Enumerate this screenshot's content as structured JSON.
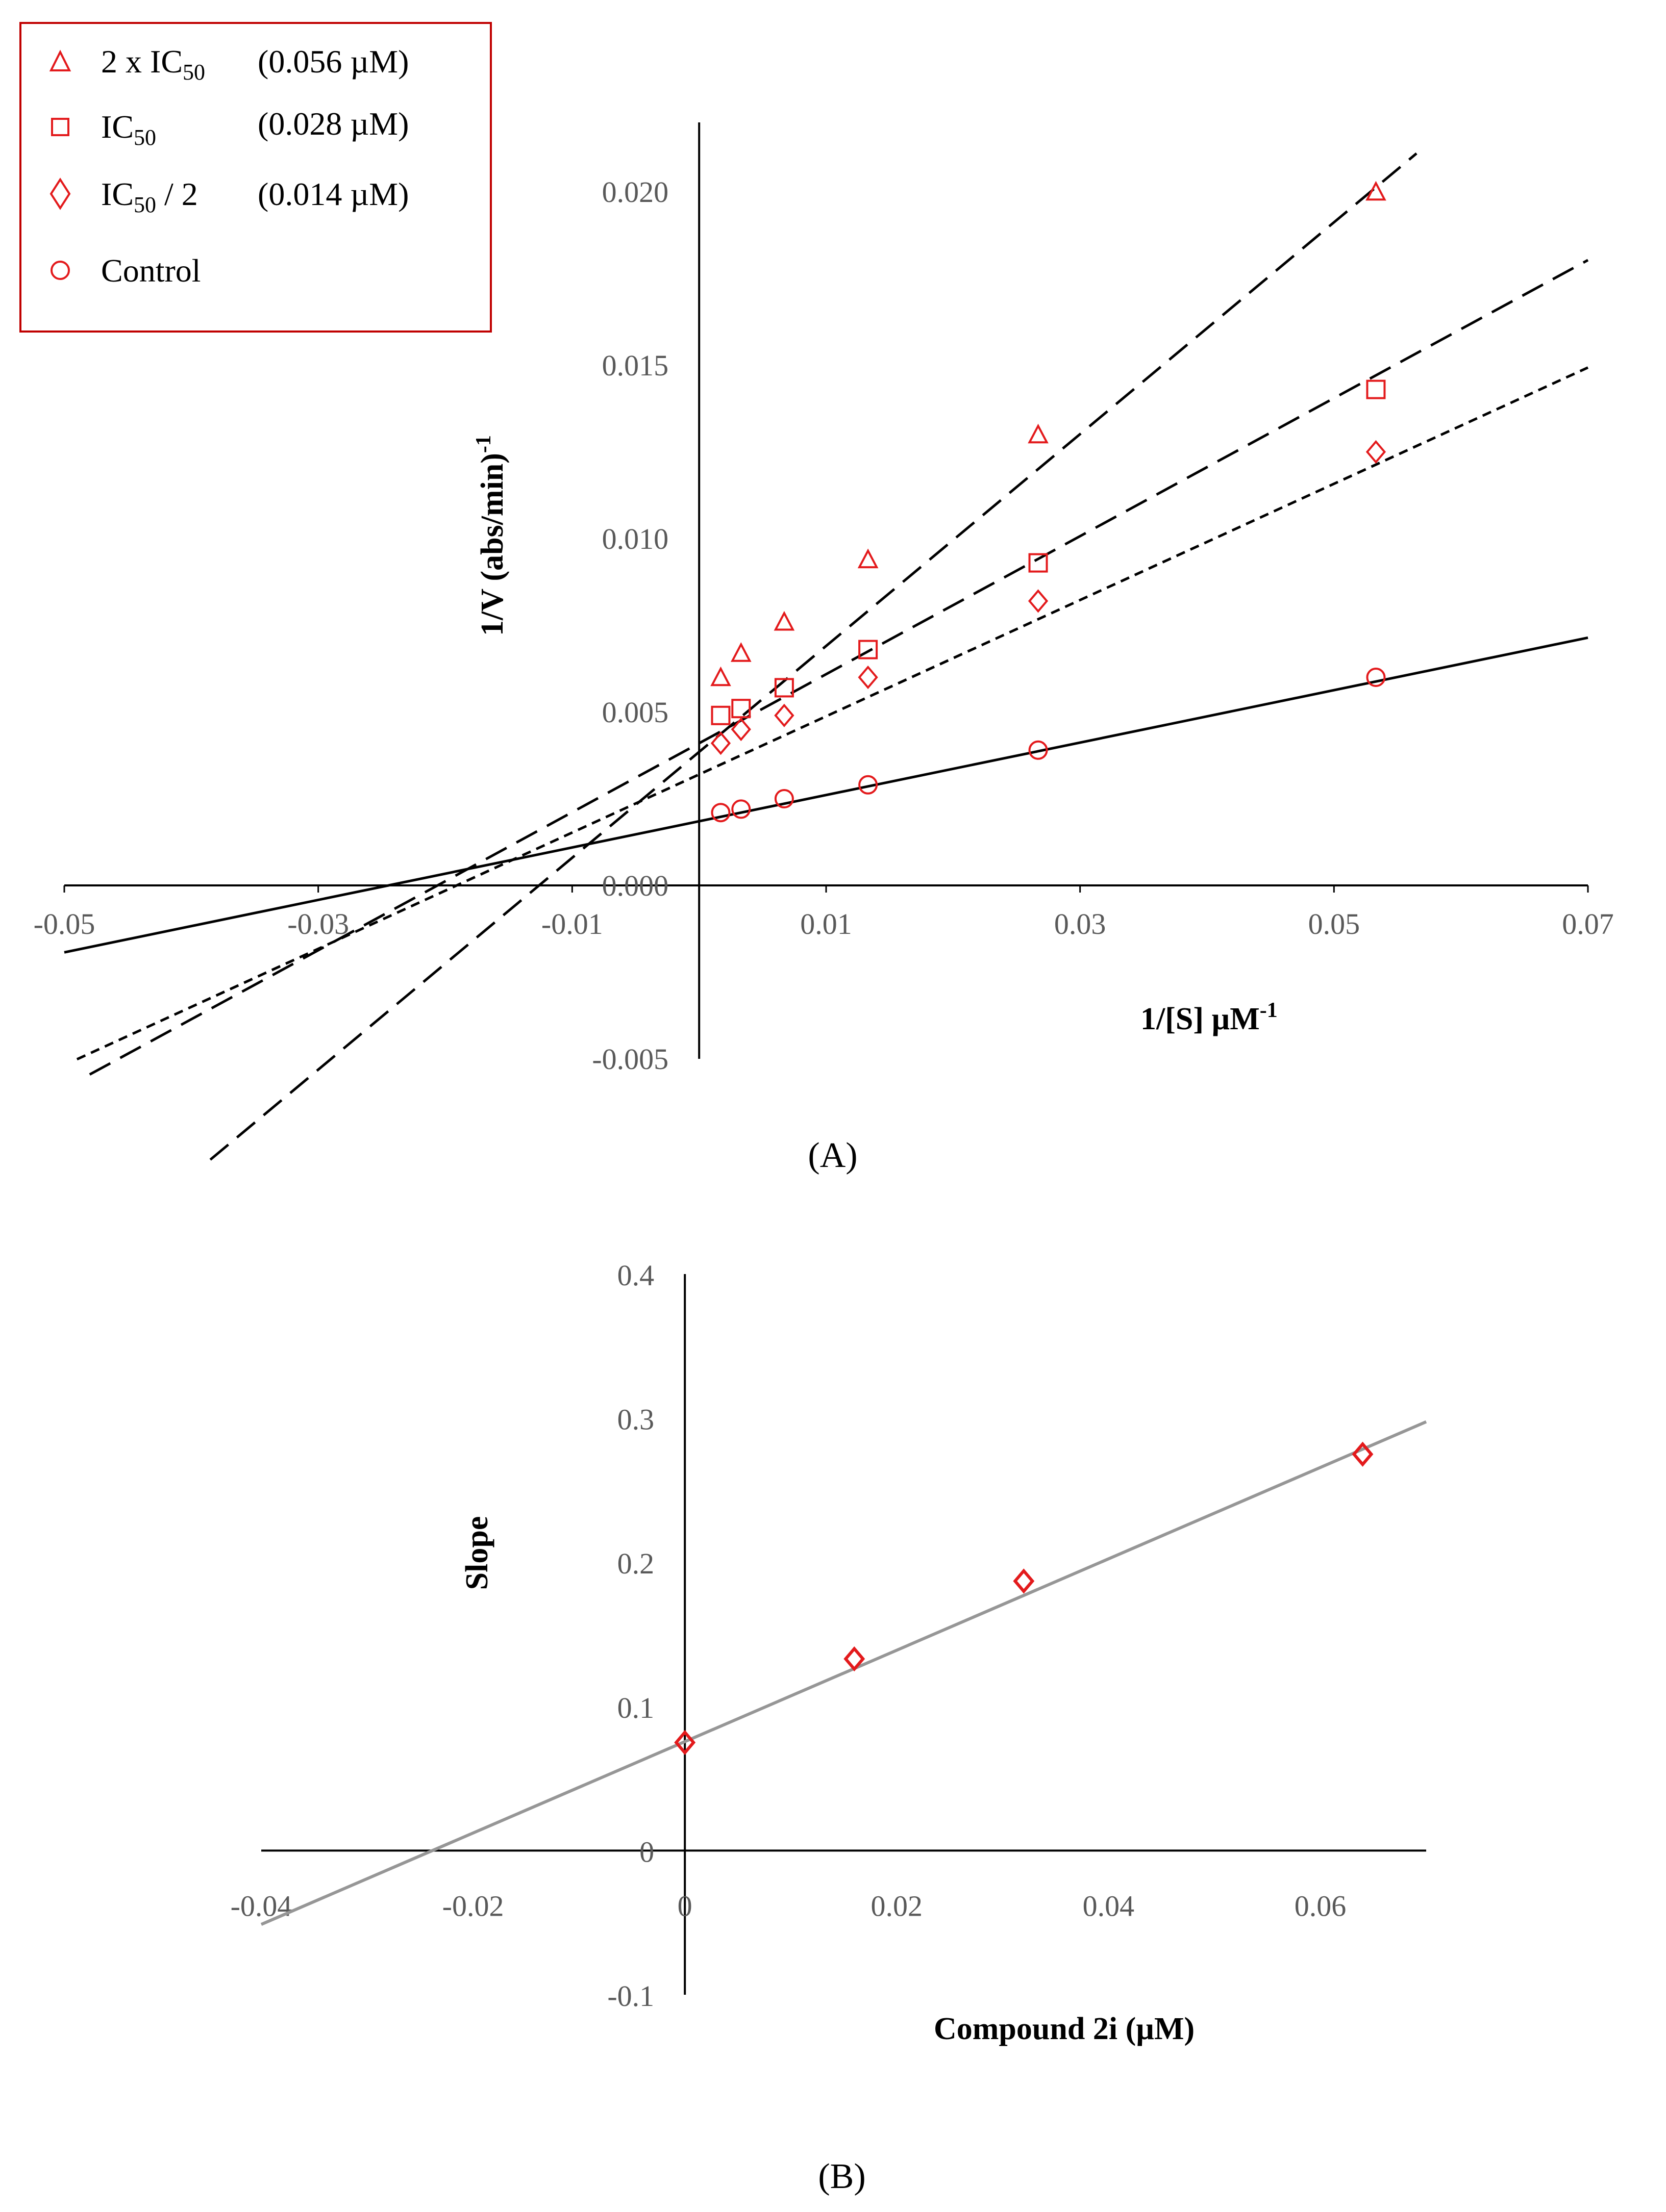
{
  "colors": {
    "marker": "#e31a1c",
    "axis": "#000000",
    "tick_text": "#595959",
    "fit_line_B": "#969696"
  },
  "chart_data": [
    {
      "panel": "A",
      "panel_label": "(A)",
      "type": "scatter",
      "title": "",
      "xlabel": "1/[S] µM",
      "xlabel_sup": "-1",
      "ylabel": "1/V (abs/min)",
      "ylabel_sup": "-1",
      "xlim": [
        -0.05,
        0.07
      ],
      "ylim": [
        -0.005,
        0.022
      ],
      "x_ticks": [
        {
          "value": -0.05,
          "label": "-0.05"
        },
        {
          "value": -0.03,
          "label": "-0.03"
        },
        {
          "value": -0.01,
          "label": "-0.01"
        },
        {
          "value": 0.01,
          "label": "0.01"
        },
        {
          "value": 0.03,
          "label": "0.03"
        },
        {
          "value": 0.05,
          "label": "0.05"
        },
        {
          "value": 0.07,
          "label": "0.07"
        }
      ],
      "y_ticks": [
        {
          "value": -0.005,
          "label": "-0.005"
        },
        {
          "value": 0.0,
          "label": "0.000"
        },
        {
          "value": 0.005,
          "label": "0.005"
        },
        {
          "value": 0.01,
          "label": "0.010"
        },
        {
          "value": 0.015,
          "label": "0.015"
        },
        {
          "value": 0.02,
          "label": "0.020"
        }
      ],
      "legend": {
        "position": "top-left",
        "entries": [
          {
            "marker": "triangle",
            "label_pre": "2 x IC",
            "label_sub": "50",
            "label_post": "",
            "concentration": "(0.056 µM)"
          },
          {
            "marker": "square",
            "label_pre": "IC",
            "label_sub": "50",
            "label_post": "",
            "concentration": "(0.028 µM)"
          },
          {
            "marker": "diamond",
            "label_pre": "IC",
            "label_sub": "50",
            "label_post": " / 2",
            "concentration": "(0.014 µM)"
          },
          {
            "marker": "circle",
            "label_pre": "Control",
            "label_sub": "",
            "label_post": "",
            "concentration": ""
          }
        ]
      },
      "series": [
        {
          "name": "2 x IC50 (0.056 µM)",
          "marker": "triangle",
          "line_style": "long-dash",
          "x": [
            0.0017,
            0.0033,
            0.0067,
            0.0133,
            0.0267,
            0.0533
          ],
          "y": [
            0.006,
            0.0067,
            0.0076,
            0.0094,
            0.013,
            0.02
          ],
          "fit": {
            "slope": 0.3054,
            "intercept": 0.00385,
            "x_from": -0.0385,
            "x_to": 0.0565
          }
        },
        {
          "name": "IC50 (0.028 µM)",
          "marker": "square",
          "line_style": "long-dash",
          "x": [
            0.0017,
            0.0033,
            0.0067,
            0.0133,
            0.0267,
            0.0533
          ],
          "y": [
            0.0049,
            0.0051,
            0.0057,
            0.0068,
            0.0093,
            0.0143
          ],
          "fit": {
            "slope": 0.199,
            "intercept": 0.0041,
            "x_from": -0.048,
            "x_to": 0.07
          }
        },
        {
          "name": "IC50 / 2 (0.014 µM)",
          "marker": "diamond",
          "line_style": "short-dash",
          "x": [
            0.0017,
            0.0033,
            0.0067,
            0.0133,
            0.0267,
            0.0533
          ],
          "y": [
            0.0041,
            0.0045,
            0.0049,
            0.006,
            0.0082,
            0.0125
          ],
          "fit": {
            "slope": 0.1676,
            "intercept": 0.0032,
            "x_from": -0.049,
            "x_to": 0.07
          }
        },
        {
          "name": "Control",
          "marker": "circle",
          "line_style": "solid",
          "x": [
            0.0017,
            0.0033,
            0.0067,
            0.0133,
            0.0267,
            0.0533
          ],
          "y": [
            0.0021,
            0.0022,
            0.0025,
            0.0029,
            0.0039,
            0.006
          ],
          "fit": {
            "slope": 0.0756,
            "intercept": 0.00185,
            "x_from": -0.05,
            "x_to": 0.07
          }
        }
      ]
    },
    {
      "panel": "B",
      "panel_label": "(B)",
      "type": "scatter",
      "title": "",
      "xlabel": "Compound 2i (µM)",
      "ylabel": "Slope",
      "xlim": [
        -0.04,
        0.07
      ],
      "ylim": [
        -0.1,
        0.4
      ],
      "x_ticks": [
        {
          "value": -0.04,
          "label": "-0.04"
        },
        {
          "value": -0.02,
          "label": "-0.02"
        },
        {
          "value": 0.0,
          "label": "0"
        },
        {
          "value": 0.02,
          "label": "0.02"
        },
        {
          "value": 0.04,
          "label": "0.04"
        },
        {
          "value": 0.06,
          "label": "0.06"
        }
      ],
      "y_ticks": [
        {
          "value": -0.1,
          "label": "-0.1"
        },
        {
          "value": 0.0,
          "label": "0"
        },
        {
          "value": 0.1,
          "label": "0.1"
        },
        {
          "value": 0.2,
          "label": "0.2"
        },
        {
          "value": 0.3,
          "label": "0.3"
        },
        {
          "value": 0.4,
          "label": "0.4"
        }
      ],
      "series": [
        {
          "name": "Slope",
          "marker": "diamond",
          "x": [
            0.0,
            0.016,
            0.032,
            0.064
          ],
          "y": [
            0.075,
            0.133,
            0.187,
            0.275
          ],
          "fit": {
            "slope": 3.17,
            "intercept": 0.0756,
            "x_from": -0.04,
            "x_to": 0.07
          }
        }
      ]
    }
  ]
}
